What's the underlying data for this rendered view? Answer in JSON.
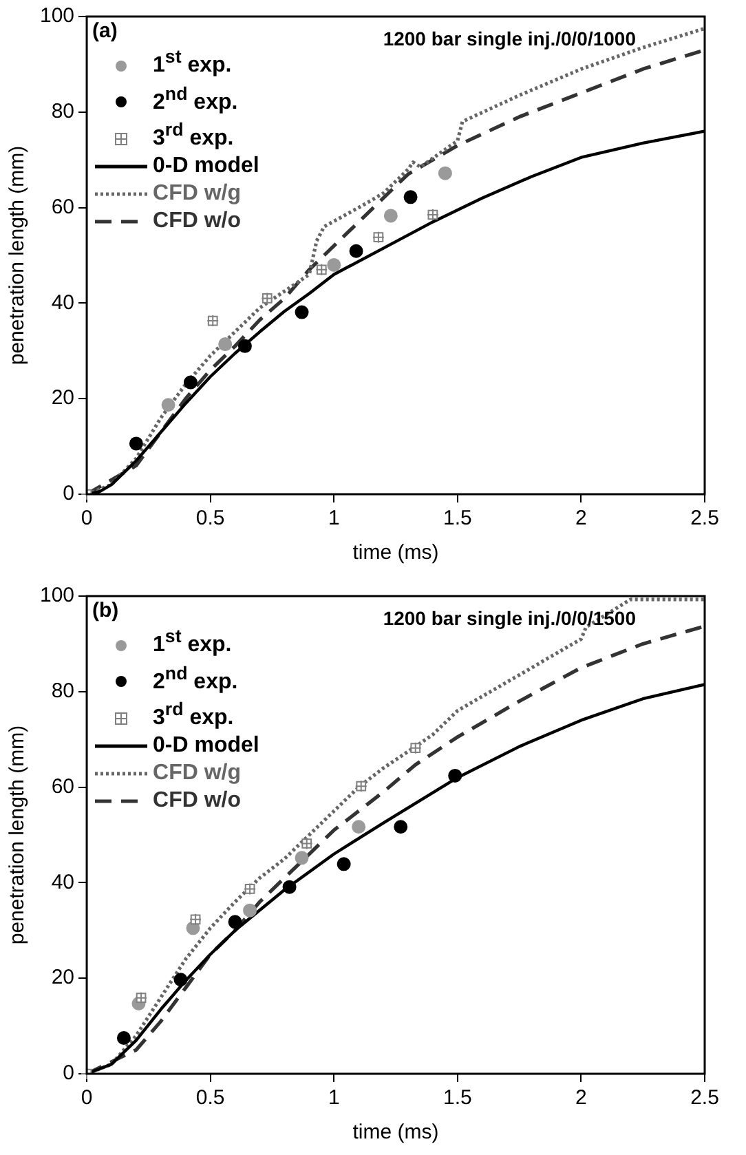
{
  "chart_data": [
    {
      "type": "line",
      "title": "1200 bar single inj./0/0/1000",
      "xlabel": "time (ms)",
      "ylabel": "penetration length (mm)",
      "annotations": [
        "(a)"
      ],
      "xlim": [
        0,
        2.5
      ],
      "xticks": [
        0,
        0.5,
        1,
        1.5,
        2,
        2.5
      ],
      "ylim": [
        0,
        100
      ],
      "yticks": [
        0,
        20,
        40,
        60,
        80,
        100
      ],
      "grid": false,
      "legend": "top left",
      "series": [
        {
          "name": "1$^{st}$ exp.",
          "type": "scatter",
          "marker": "circle",
          "color": "#9a9a9a",
          "x": [
            0.33,
            0.56,
            1.0,
            1.23,
            1.45
          ],
          "values": [
            18.7,
            31.4,
            48,
            58.3,
            67.2
          ]
        },
        {
          "name": "2$^{nd}$ exp.",
          "type": "scatter",
          "marker": "circle",
          "color": "#000000",
          "x": [
            0.2,
            0.42,
            0.64,
            0.87,
            1.09,
            1.31
          ],
          "values": [
            10.6,
            23.4,
            31,
            38.1,
            50.9,
            62.2
          ]
        },
        {
          "name": "3$^{rd}$ exp.",
          "type": "scatter",
          "marker": "square",
          "color": "#808080",
          "x": [
            0,
            0.51,
            0.73,
            0.95,
            1.18,
            1.4
          ],
          "values": [
            0,
            36.3,
            41,
            47,
            53.8,
            58.5
          ]
        },
        {
          "name": "0-D model",
          "type": "line",
          "marker": "none",
          "line_style": "solid",
          "color": "#000000",
          "x": [
            0,
            0.05,
            0.1,
            0.2,
            0.3,
            0.4,
            0.5,
            0.6,
            0.7,
            0.8,
            0.9,
            1.0,
            1.2,
            1.4,
            1.6,
            1.8,
            2.0,
            2.25,
            2.5
          ],
          "values": [
            0,
            0.5,
            2,
            7,
            13,
            19,
            24.6,
            29.5,
            34,
            38.3,
            42,
            46,
            51.5,
            57,
            62,
            66.5,
            70.5,
            73.5,
            76
          ]
        },
        {
          "name": "CFD w/g",
          "type": "line",
          "marker": "none",
          "line_style": "dotted",
          "color": "#666666",
          "x": [
            0,
            0.1,
            0.2,
            0.3,
            0.4,
            0.5,
            0.6,
            0.7,
            0.8,
            0.9,
            0.93,
            0.96,
            1.1,
            1.2,
            1.3,
            1.32,
            1.35,
            1.5,
            1.52,
            1.75,
            2.0,
            2.25,
            2.5
          ],
          "values": [
            0,
            2,
            7.5,
            16,
            23,
            29,
            34,
            39,
            42.5,
            46,
            53,
            56,
            60,
            63,
            68,
            69.5,
            68.5,
            74,
            78,
            83.5,
            89,
            93.5,
            97.5
          ]
        },
        {
          "name": "CFD w/o",
          "type": "line",
          "marker": "none",
          "line_style": "dashed",
          "color": "#333333",
          "x": [
            0,
            0.2,
            0.3,
            0.4,
            0.5,
            0.6,
            0.7,
            0.8,
            0.9,
            1.0,
            1.1,
            1.2,
            1.3,
            1.5,
            1.75,
            2.0,
            2.25,
            2.5
          ],
          "values": [
            0,
            6,
            13,
            20,
            26,
            31,
            36.5,
            41,
            47,
            52,
            57,
            62,
            67,
            73,
            79,
            84,
            89,
            93
          ]
        }
      ]
    },
    {
      "type": "line",
      "title": "1200 bar single inj./0/0/1500",
      "xlabel": "time (ms)",
      "ylabel": "penetration length (mm)",
      "annotations": [
        "(b)"
      ],
      "xlim": [
        0,
        2.5
      ],
      "xticks": [
        0,
        0.5,
        1,
        1.5,
        2,
        2.5
      ],
      "ylim": [
        0,
        100
      ],
      "yticks": [
        0,
        20,
        40,
        60,
        80,
        100
      ],
      "grid": false,
      "legend": "top left",
      "series": [
        {
          "name": "1$^{st}$ exp.",
          "type": "scatter",
          "marker": "circle",
          "color": "#9a9a9a",
          "x": [
            0.21,
            0.43,
            0.66,
            0.87,
            1.1
          ],
          "values": [
            14.7,
            30.5,
            34.2,
            45.2,
            51.7
          ]
        },
        {
          "name": "2$^{nd}$ exp.",
          "type": "scatter",
          "marker": "circle",
          "color": "#000000",
          "x": [
            0.15,
            0.38,
            0.6,
            0.82,
            1.04,
            1.27,
            1.49
          ],
          "values": [
            7.5,
            19.7,
            31.8,
            39.1,
            43.9,
            51.7,
            62.4
          ]
        },
        {
          "name": "3$^{rd}$ exp.",
          "type": "scatter",
          "marker": "square",
          "color": "#808080",
          "x": [
            0,
            0.22,
            0.44,
            0.66,
            0.89,
            1.11,
            1.33
          ],
          "values": [
            0,
            15.9,
            32.3,
            38.7,
            48.2,
            60.2,
            68.2
          ]
        },
        {
          "name": "0-D model",
          "type": "line",
          "marker": "none",
          "line_style": "solid",
          "color": "#000000",
          "x": [
            0,
            0.1,
            0.2,
            0.3,
            0.4,
            0.5,
            0.6,
            0.8,
            1.0,
            1.2,
            1.5,
            1.75,
            2.0,
            2.25,
            2.5
          ],
          "values": [
            0,
            2,
            7,
            13.5,
            19.5,
            25,
            30,
            38.5,
            46,
            52.5,
            62,
            68.5,
            74,
            78.5,
            81.5
          ]
        },
        {
          "name": "CFD w/g",
          "type": "line",
          "marker": "none",
          "line_style": "dotted",
          "color": "#666666",
          "x": [
            0,
            0.1,
            0.2,
            0.3,
            0.4,
            0.5,
            0.6,
            0.7,
            0.8,
            0.9,
            1.0,
            1.1,
            1.2,
            1.33,
            1.4,
            1.5,
            1.6,
            1.7,
            1.8,
            2.0,
            2.02,
            2.2,
            2.5
          ],
          "values": [
            0,
            2,
            8,
            16,
            24,
            30.5,
            36,
            41,
            45,
            50,
            55,
            60,
            64,
            68.5,
            71,
            76,
            79,
            82,
            85,
            91,
            93.5,
            99.3,
            99.3
          ]
        },
        {
          "name": "CFD w/o",
          "type": "line",
          "marker": "none",
          "line_style": "dashed",
          "color": "#333333",
          "x": [
            0,
            0.2,
            0.3,
            0.4,
            0.5,
            0.6,
            0.7,
            0.8,
            0.9,
            1.0,
            1.2,
            1.33,
            1.5,
            1.75,
            2.0,
            2.25,
            2.5
          ],
          "values": [
            0,
            5,
            11,
            18,
            25,
            30,
            36,
            41,
            46,
            51,
            59,
            64.7,
            70.5,
            78,
            85,
            90,
            93.7
          ]
        }
      ]
    }
  ]
}
